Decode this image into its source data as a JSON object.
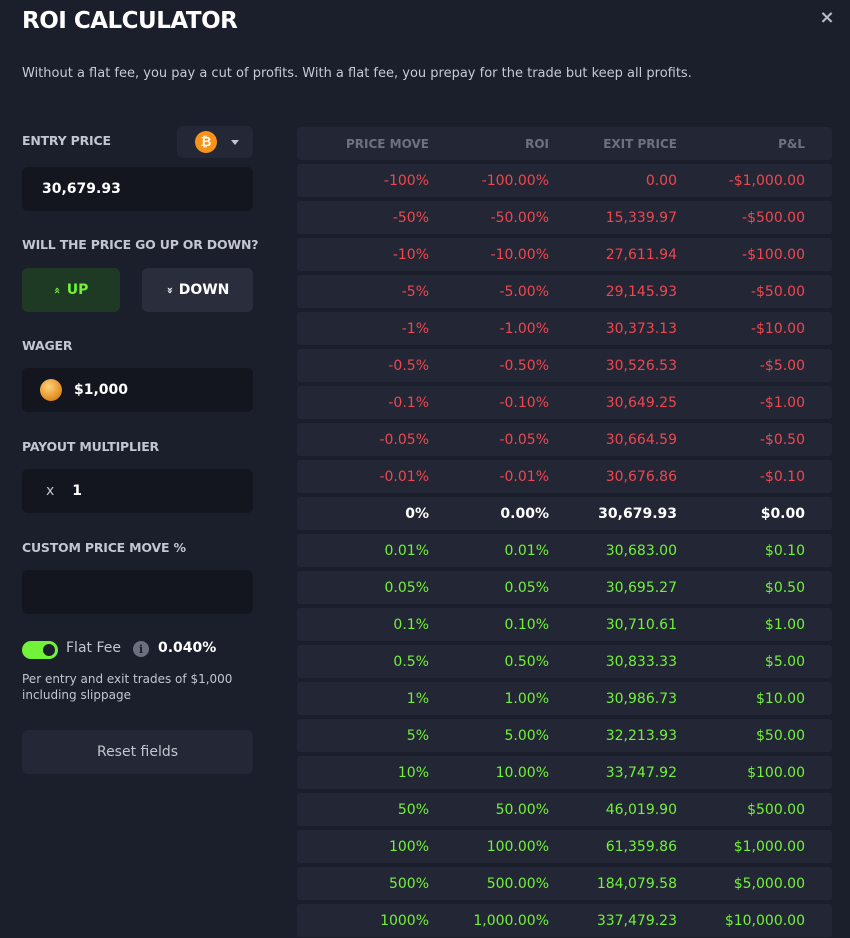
{
  "header": {
    "title": "ROI CALCULATOR",
    "subtitle": "Without a flat fee, you pay a cut of profits. With a flat fee, you prepay for the trade but keep all profits."
  },
  "form": {
    "entry_price_label": "ENTRY PRICE",
    "coin_symbol": "₿",
    "entry_price_value": "30,679.93",
    "direction_label": "WILL THE PRICE GO UP OR DOWN?",
    "up_label": "UP",
    "down_label": "DOWN",
    "up_icon": "«",
    "down_icon": "«",
    "wager_label": "WAGER",
    "wager_value": "$1,000",
    "multiplier_label": "PAYOUT MULTIPLIER",
    "multiplier_prefix": "x",
    "multiplier_value": "1",
    "custom_move_label": "CUSTOM PRICE MOVE %",
    "custom_move_value": "",
    "flat_fee_label": "Flat Fee",
    "flat_fee_enabled": true,
    "info_icon": "i",
    "flat_fee_value": "0.040%",
    "fee_note": "Per entry and exit trades of $1,000 including slippage",
    "reset_label": "Reset fields",
    "close_icon": "×"
  },
  "table": {
    "headers": [
      "PRICE MOVE",
      "ROI",
      "EXIT PRICE",
      "P&L"
    ],
    "rows": [
      {
        "move": "-100%",
        "roi": "-100.00%",
        "exit": "0.00",
        "pnl": "-$1,000.00",
        "tone": "neg"
      },
      {
        "move": "-50%",
        "roi": "-50.00%",
        "exit": "15,339.97",
        "pnl": "-$500.00",
        "tone": "neg"
      },
      {
        "move": "-10%",
        "roi": "-10.00%",
        "exit": "27,611.94",
        "pnl": "-$100.00",
        "tone": "neg"
      },
      {
        "move": "-5%",
        "roi": "-5.00%",
        "exit": "29,145.93",
        "pnl": "-$50.00",
        "tone": "neg"
      },
      {
        "move": "-1%",
        "roi": "-1.00%",
        "exit": "30,373.13",
        "pnl": "-$10.00",
        "tone": "neg"
      },
      {
        "move": "-0.5%",
        "roi": "-0.50%",
        "exit": "30,526.53",
        "pnl": "-$5.00",
        "tone": "neg"
      },
      {
        "move": "-0.1%",
        "roi": "-0.10%",
        "exit": "30,649.25",
        "pnl": "-$1.00",
        "tone": "neg"
      },
      {
        "move": "-0.05%",
        "roi": "-0.05%",
        "exit": "30,664.59",
        "pnl": "-$0.50",
        "tone": "neg"
      },
      {
        "move": "-0.01%",
        "roi": "-0.01%",
        "exit": "30,676.86",
        "pnl": "-$0.10",
        "tone": "neg"
      },
      {
        "move": "0%",
        "roi": "0.00%",
        "exit": "30,679.93",
        "pnl": "$0.00",
        "tone": "zero"
      },
      {
        "move": "0.01%",
        "roi": "0.01%",
        "exit": "30,683.00",
        "pnl": "$0.10",
        "tone": "pos"
      },
      {
        "move": "0.05%",
        "roi": "0.05%",
        "exit": "30,695.27",
        "pnl": "$0.50",
        "tone": "pos"
      },
      {
        "move": "0.1%",
        "roi": "0.10%",
        "exit": "30,710.61",
        "pnl": "$1.00",
        "tone": "pos"
      },
      {
        "move": "0.5%",
        "roi": "0.50%",
        "exit": "30,833.33",
        "pnl": "$5.00",
        "tone": "pos"
      },
      {
        "move": "1%",
        "roi": "1.00%",
        "exit": "30,986.73",
        "pnl": "$10.00",
        "tone": "pos"
      },
      {
        "move": "5%",
        "roi": "5.00%",
        "exit": "32,213.93",
        "pnl": "$50.00",
        "tone": "pos"
      },
      {
        "move": "10%",
        "roi": "10.00%",
        "exit": "33,747.92",
        "pnl": "$100.00",
        "tone": "pos"
      },
      {
        "move": "50%",
        "roi": "50.00%",
        "exit": "46,019.90",
        "pnl": "$500.00",
        "tone": "pos"
      },
      {
        "move": "100%",
        "roi": "100.00%",
        "exit": "61,359.86",
        "pnl": "$1,000.00",
        "tone": "pos"
      },
      {
        "move": "500%",
        "roi": "500.00%",
        "exit": "184,079.58",
        "pnl": "$5,000.00",
        "tone": "pos"
      },
      {
        "move": "1000%",
        "roi": "1,000.00%",
        "exit": "337,479.23",
        "pnl": "$10,000.00",
        "tone": "pos"
      }
    ]
  },
  "colors": {
    "background": "#1b1e2b",
    "negative": "#f0474f",
    "positive": "#72f238",
    "bitcoin": "#f7931a"
  }
}
